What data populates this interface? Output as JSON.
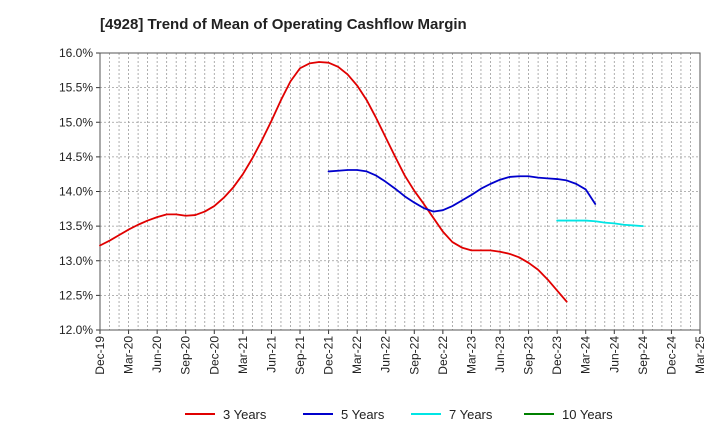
{
  "chart_data": {
    "type": "line",
    "title": "[4928]  Trend of Mean of Operating Cashflow Margin",
    "xlabel": "",
    "ylabel": "",
    "x_ticks": [
      "Dec-19",
      "Mar-20",
      "Jun-20",
      "Sep-20",
      "Dec-20",
      "Mar-21",
      "Jun-21",
      "Sep-21",
      "Dec-21",
      "Mar-22",
      "Jun-22",
      "Sep-22",
      "Dec-22",
      "Mar-23",
      "Jun-23",
      "Sep-23",
      "Dec-23",
      "Mar-24",
      "Jun-24",
      "Sep-24",
      "Dec-24",
      "Mar-25"
    ],
    "y_ticks": [
      "12.0%",
      "12.5%",
      "13.0%",
      "13.5%",
      "14.0%",
      "14.5%",
      "15.0%",
      "15.5%",
      "16.0%"
    ],
    "ylim": [
      12.0,
      16.0
    ],
    "grid": true,
    "legend_position": "bottom",
    "series": [
      {
        "name": "3 Years",
        "color": "#e00000",
        "start_index": 0,
        "values": [
          13.22,
          13.29,
          13.37,
          13.45,
          13.52,
          13.58,
          13.63,
          13.67,
          13.67,
          13.65,
          13.66,
          13.71,
          13.79,
          13.91,
          14.06,
          14.25,
          14.48,
          14.74,
          15.02,
          15.32,
          15.59,
          15.78,
          15.85,
          15.87,
          15.86,
          15.8,
          15.69,
          15.53,
          15.32,
          15.06,
          14.78,
          14.5,
          14.23,
          14.01,
          13.82,
          13.62,
          13.42,
          13.27,
          13.19,
          13.15,
          13.15,
          13.15,
          13.13,
          13.1,
          13.05,
          12.97,
          12.87,
          12.73,
          12.57,
          12.41
        ]
      },
      {
        "name": "5 Years",
        "color": "#0000cc",
        "start_index": 24,
        "values": [
          14.29,
          14.3,
          14.31,
          14.31,
          14.29,
          14.23,
          14.14,
          14.04,
          13.93,
          13.84,
          13.76,
          13.71,
          13.73,
          13.79,
          13.87,
          13.95,
          14.04,
          14.11,
          14.17,
          14.21,
          14.22,
          14.22,
          14.2,
          14.19,
          14.18,
          14.16,
          14.11,
          14.03,
          13.82
        ]
      },
      {
        "name": "7 Years",
        "color": "#00e5e5",
        "start_index": 48,
        "values": [
          13.58,
          13.58,
          13.58,
          13.58,
          13.57,
          13.55,
          13.54,
          13.52,
          13.51,
          13.5
        ]
      },
      {
        "name": "10 Years",
        "color": "#008000",
        "start_index": 0,
        "values": []
      }
    ]
  }
}
